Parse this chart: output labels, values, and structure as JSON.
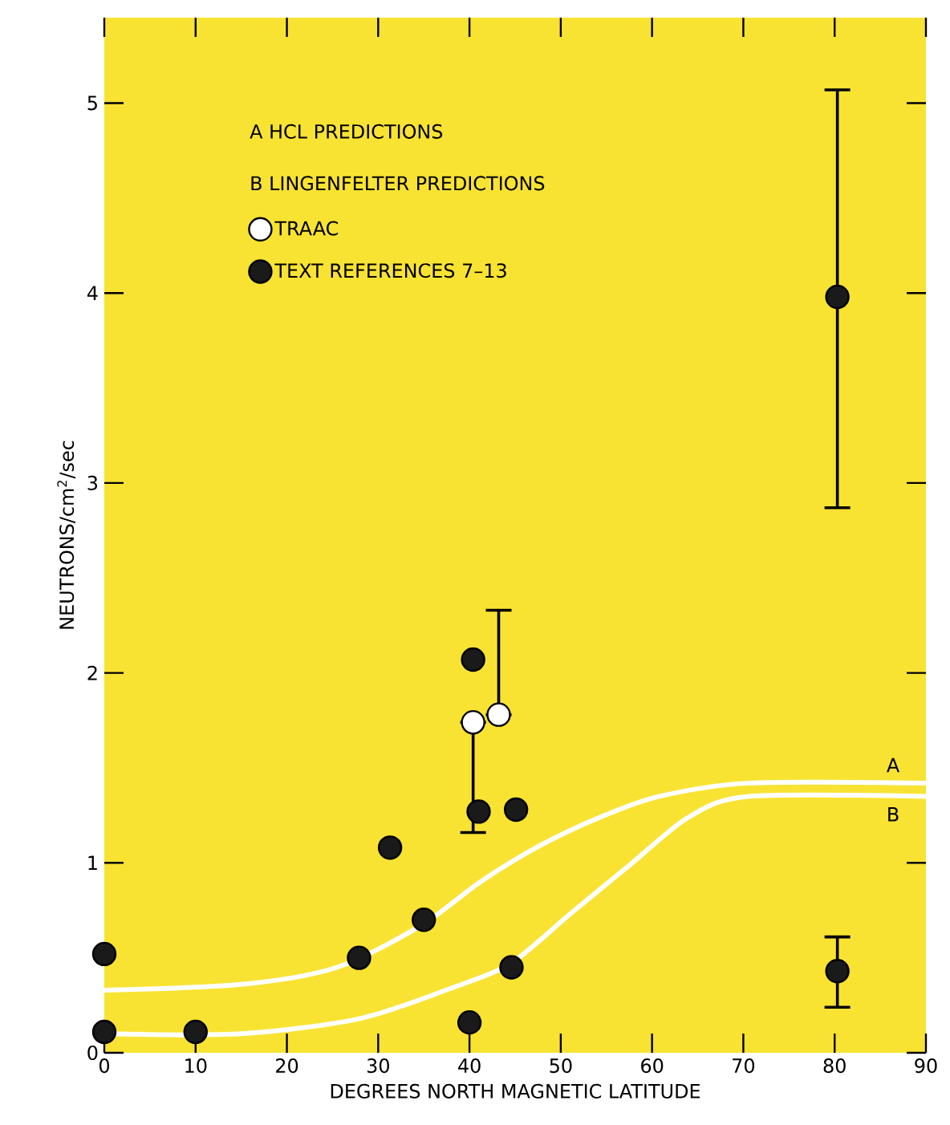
{
  "chart_data": {
    "type": "scatter",
    "xlabel": "DEGREES NORTH MAGNETIC LATITUDE",
    "ylabel": "NEUTRONS/cm$^{2}$/sec",
    "annotations": [
      "A   HCL PREDICTIONS",
      "B   LINGENFELTER PREDICTIONS"
    ],
    "xlim": [
      0,
      90
    ],
    "ylim": [
      0,
      5.45
    ],
    "xticks": [
      0,
      10,
      20,
      30,
      40,
      50,
      60,
      70,
      80,
      90
    ],
    "yticks": [
      0,
      1,
      2,
      3,
      4,
      5
    ],
    "legend": "top left",
    "grid": false,
    "series": [
      {
        "name": "A",
        "type": "line",
        "color": "#ffffff",
        "x": [
          0,
          15,
          25.5,
          34.7,
          41.2,
          47.7,
          54.3,
          60.8,
          70.6,
          90
        ],
        "values": [
          0.33,
          0.36,
          0.45,
          0.67,
          0.9,
          1.09,
          1.24,
          1.35,
          1.42,
          1.42
        ]
      },
      {
        "name": "B",
        "type": "line",
        "color": "#ffffff",
        "x": [
          0,
          15,
          28,
          38,
          44.5,
          51,
          57.6,
          64,
          70.6,
          90
        ],
        "values": [
          0.1,
          0.1,
          0.18,
          0.34,
          0.47,
          0.73,
          0.99,
          1.24,
          1.35,
          1.35
        ]
      },
      {
        "name": "TRAAC",
        "color": "#ffffff",
        "x": [
          40.4,
          43.2
        ],
        "values": [
          1.74,
          1.78
        ],
        "errors": [
          [
            1.16,
            1.74
          ],
          [
            1.78,
            2.33
          ]
        ]
      },
      {
        "name": "TEXT REFERENCES 7–13",
        "color": "#1a1a1a",
        "x": [
          0,
          0,
          10,
          27.9,
          31.3,
          35,
          40.4,
          41,
          45.1,
          44.6,
          40,
          80.3,
          80.3
        ],
        "values": [
          0.52,
          0.11,
          0.11,
          0.5,
          1.08,
          0.7,
          2.07,
          1.27,
          1.28,
          0.45,
          0.16,
          0.43,
          3.98
        ],
        "errors": [
          null,
          null,
          null,
          null,
          null,
          null,
          null,
          null,
          null,
          null,
          null,
          [
            0.24,
            0.61
          ],
          [
            2.87,
            5.07
          ]
        ]
      }
    ]
  }
}
